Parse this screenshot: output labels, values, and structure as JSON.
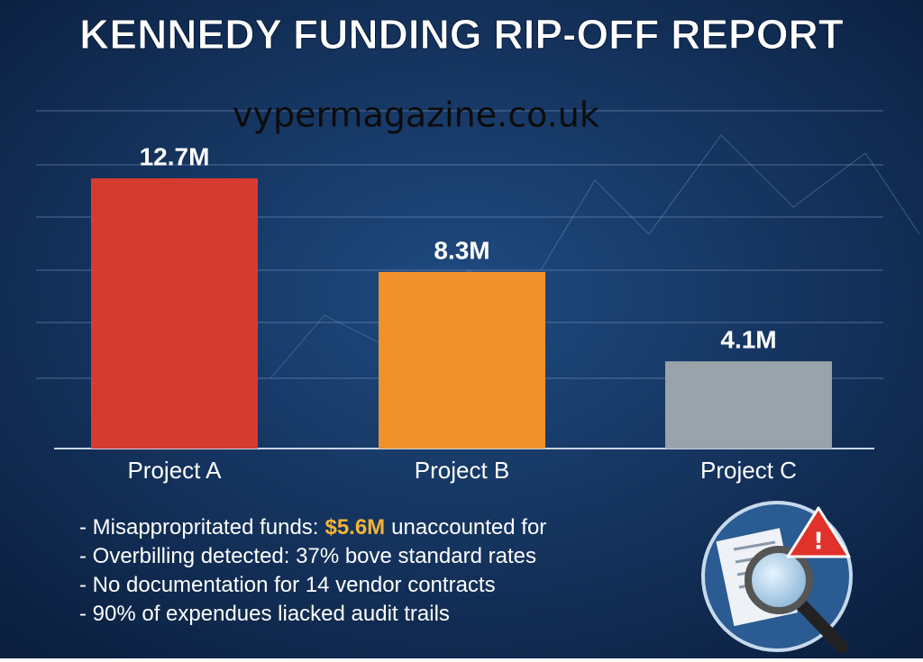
{
  "chart_data": {
    "type": "bar",
    "title": "KENNEDY FUNDING RIP-OFF REPORT",
    "watermark": "vypermagazine.co.uk",
    "categories": [
      "Project A",
      "Project B",
      "Project C"
    ],
    "values": [
      12.7,
      8.3,
      4.1
    ],
    "value_labels": [
      "12.7M",
      "8.3M",
      "4.1M"
    ],
    "colors": [
      "#d63b2f",
      "#f0912b",
      "#9aa2aa"
    ],
    "notes": [
      [
        "- Misappropritated funds:",
        "$5.6M",
        "unaccounted for"
      ],
      [
        "- Overbilling detected: 37% bove standard rates"
      ],
      [
        "- No documentation for 14 vendor contracts"
      ],
      [
        "- 90% of expendues liacked audit trails"
      ]
    ]
  }
}
